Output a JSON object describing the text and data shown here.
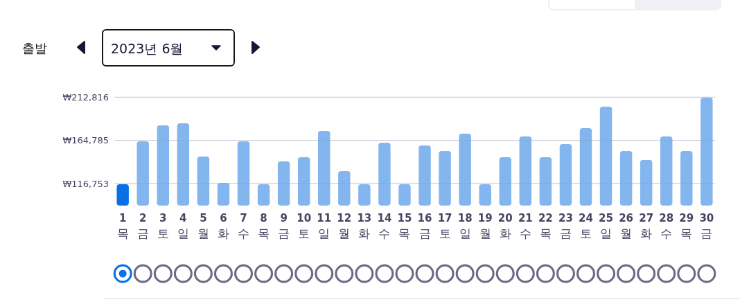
{
  "chart_data": {
    "type": "bar",
    "annotations": [
      "출발",
      "2023년 6월"
    ],
    "categories": [
      "1 목",
      "2 금",
      "3 토",
      "4 일",
      "5 월",
      "6 화",
      "7 수",
      "8 목",
      "9 금",
      "10 토",
      "11 일",
      "12 월",
      "13 화",
      "14 수",
      "15 목",
      "16 금",
      "17 토",
      "18 일",
      "19 월",
      "20 화",
      "21 수",
      "22 목",
      "23 금",
      "24 토",
      "25 일",
      "26 월",
      "27 화",
      "28 수",
      "29 목",
      "30 금"
    ],
    "values": [
      116000,
      163700,
      181500,
      183800,
      146800,
      117500,
      163700,
      116000,
      141400,
      146000,
      175300,
      130600,
      116000,
      162200,
      116000,
      159100,
      152900,
      172200,
      116000,
      146000,
      169100,
      146000,
      160600,
      178400,
      202300,
      152900,
      142900,
      169100,
      152900,
      212300
    ],
    "colors": [
      "#0770e3",
      "#83b5ef",
      "#83b5ef",
      "#83b5ef",
      "#83b5ef",
      "#83b5ef",
      "#83b5ef",
      "#83b5ef",
      "#83b5ef",
      "#83b5ef",
      "#83b5ef",
      "#83b5ef",
      "#83b5ef",
      "#83b5ef",
      "#83b5ef",
      "#83b5ef",
      "#83b5ef",
      "#83b5ef",
      "#83b5ef",
      "#83b5ef",
      "#83b5ef",
      "#83b5ef",
      "#83b5ef",
      "#83b5ef",
      "#83b5ef",
      "#83b5ef",
      "#83b5ef",
      "#83b5ef",
      "#83b5ef",
      "#83b5ef"
    ],
    "ylim": [
      92300,
      212816
    ],
    "yticks": [
      {
        "value": 116753,
        "label": "₩116,753"
      },
      {
        "value": 164785,
        "label": "₩164,785"
      },
      {
        "value": 212816,
        "label": "₩212,816"
      }
    ],
    "grid": "y"
  }
}
